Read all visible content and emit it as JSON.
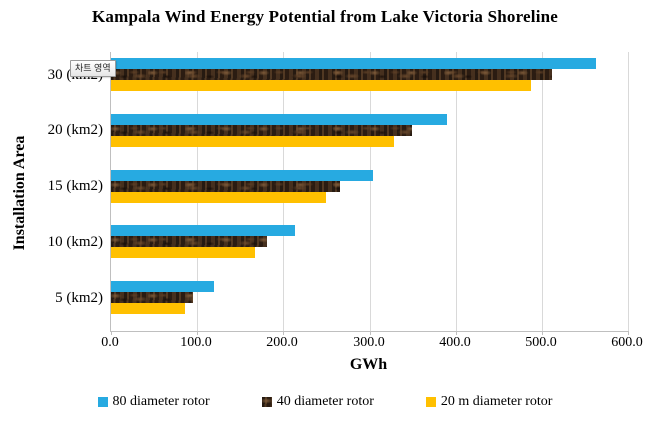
{
  "title": "Kampala Wind Energy Potential from Lake Victoria Shoreline",
  "tooltip": {
    "text": "차트 영역"
  },
  "colors": {
    "series_blue": "#27aae1",
    "series_brown": "#3a281a",
    "series_yellow": "#ffc000",
    "gridline": "#d9d9d9",
    "axis": "#bfbfbf"
  },
  "chart_data": {
    "type": "bar",
    "orientation": "horizontal",
    "title": "Kampala Wind Energy Potential from Lake Victoria Shoreline",
    "categories": [
      "30 (km2)",
      "20 (km2)",
      "15 (km2)",
      "10 (km2)",
      "5 (km2)"
    ],
    "series": [
      {
        "name": "80 diameter rotor",
        "color": "#27aae1",
        "values": [
          563,
          390,
          304,
          214,
          120
        ]
      },
      {
        "name": "40 diameter rotor",
        "color": "#3a281a",
        "fill": "dark-brown-mottled-texture",
        "values": [
          512,
          349,
          266,
          181,
          95
        ]
      },
      {
        "name": "20 m diameter rotor",
        "color": "#ffc000",
        "values": [
          487,
          328,
          250,
          167,
          86
        ]
      }
    ],
    "xlabel": "GWh",
    "ylabel": "Installation Area",
    "xlim": [
      0,
      600
    ],
    "xticks": [
      "0.0",
      "100.0",
      "200.0",
      "300.0",
      "400.0",
      "500.0",
      "600.0"
    ],
    "grid": "vertical",
    "legend_position": "bottom"
  }
}
